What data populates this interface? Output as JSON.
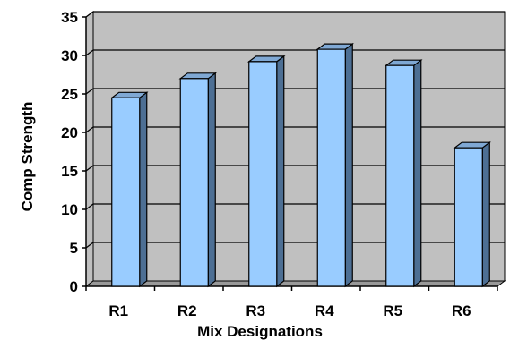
{
  "chart_data": {
    "type": "bar",
    "categories": [
      "R1",
      "R2",
      "R3",
      "R4",
      "R5",
      "R6"
    ],
    "values": [
      24.5,
      27,
      29.2,
      30.8,
      28.7,
      18
    ],
    "title": "",
    "xlabel": "Mix Designations",
    "ylabel": "Comp Strength",
    "ylim": [
      0,
      35
    ],
    "yticks": [
      0,
      5,
      10,
      15,
      20,
      25,
      30,
      35
    ],
    "grid": true,
    "legend": "none"
  },
  "colors": {
    "wall": "#c0c0c0",
    "floor": "#999999",
    "bar_front": "#99ccff",
    "bar_side": "#4d6f94",
    "bar_top": "#7fa8d4",
    "outline": "#000000"
  }
}
